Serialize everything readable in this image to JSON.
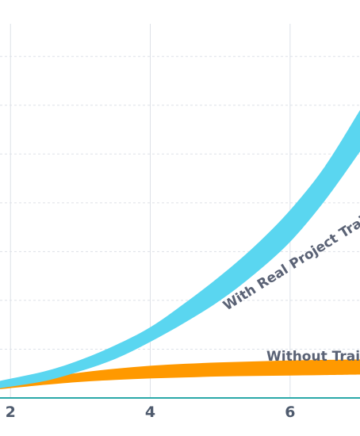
{
  "chart_data": {
    "type": "area",
    "title": "",
    "xlabel": "",
    "ylabel": "",
    "x_ticks": [
      2,
      4,
      6
    ],
    "xlim": [
      1.85,
      7.0
    ],
    "ylim": [
      0,
      7.8
    ],
    "grid": true,
    "legend": "inline",
    "colors": {
      "grid": "#dde1e8",
      "baseline": "#2aa8a8",
      "with_training": "#5ad6f0",
      "without_training": "#ff9900"
    },
    "series": [
      {
        "name": "With Real Project Training",
        "x": [
          1.85,
          2.5,
          3,
          3.5,
          4,
          4.5,
          5,
          5.5,
          6,
          6.5,
          7.0
        ],
        "lower": [
          0.2,
          0.35,
          0.55,
          0.8,
          1.15,
          1.55,
          2.0,
          2.55,
          3.2,
          4.05,
          5.05
        ],
        "upper": [
          0.35,
          0.55,
          0.78,
          1.08,
          1.45,
          1.95,
          2.5,
          3.12,
          3.85,
          4.75,
          5.9
        ]
      },
      {
        "name": "Without Training",
        "x": [
          1.85,
          2.5,
          3,
          3.5,
          4,
          4.5,
          5,
          5.5,
          6,
          6.5,
          7.0
        ],
        "lower": [
          0.18,
          0.27,
          0.33,
          0.37,
          0.4,
          0.42,
          0.44,
          0.45,
          0.46,
          0.47,
          0.48
        ],
        "upper": [
          0.28,
          0.42,
          0.52,
          0.6,
          0.66,
          0.7,
          0.73,
          0.75,
          0.77,
          0.78,
          0.79
        ]
      }
    ]
  }
}
